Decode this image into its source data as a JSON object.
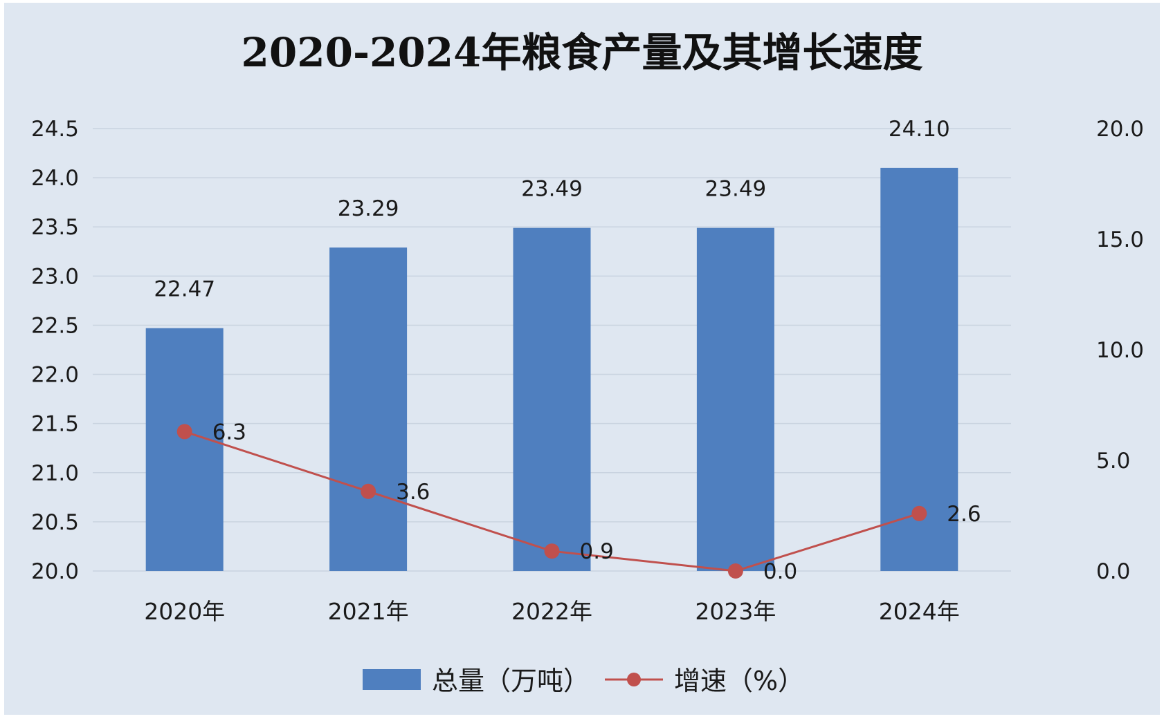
{
  "chart_data": {
    "type": "bar",
    "title": "2020-2024年粮食产量及其增长速度",
    "categories": [
      "2020年",
      "2021年",
      "2022年",
      "2023年",
      "2024年"
    ],
    "series": [
      {
        "name": "总量（万吨）",
        "type": "bar",
        "axis": "left",
        "color": "#4f7fbf",
        "values": [
          22.47,
          23.29,
          23.49,
          23.49,
          24.1
        ],
        "labels": [
          "22.47",
          "23.29",
          "23.49",
          "23.49",
          "24.10"
        ]
      },
      {
        "name": "增速（%）",
        "type": "line",
        "axis": "right",
        "color": "#c0504d",
        "values": [
          6.3,
          3.6,
          0.9,
          0.0,
          2.6
        ],
        "labels": [
          "6.3",
          "3.6",
          "0.9",
          "0.0",
          "2.6"
        ]
      }
    ],
    "y_left": {
      "min": 20.0,
      "max": 24.5,
      "ticks": [
        20.0,
        20.5,
        21.0,
        21.5,
        22.0,
        22.5,
        23.0,
        23.5,
        24.0,
        24.5
      ],
      "tick_labels": [
        "20.0",
        "20.5",
        "21.0",
        "21.5",
        "22.0",
        "22.5",
        "23.0",
        "23.5",
        "24.0",
        "24.5"
      ]
    },
    "y_right": {
      "min": 0.0,
      "max": 20.0,
      "ticks": [
        0.0,
        5.0,
        10.0,
        15.0,
        20.0
      ],
      "tick_labels": [
        "0.0",
        "5.0",
        "10.0",
        "15.0",
        "20.0"
      ]
    },
    "grid": true,
    "legend_position": "bottom",
    "background_color": "#dfe7f1"
  }
}
